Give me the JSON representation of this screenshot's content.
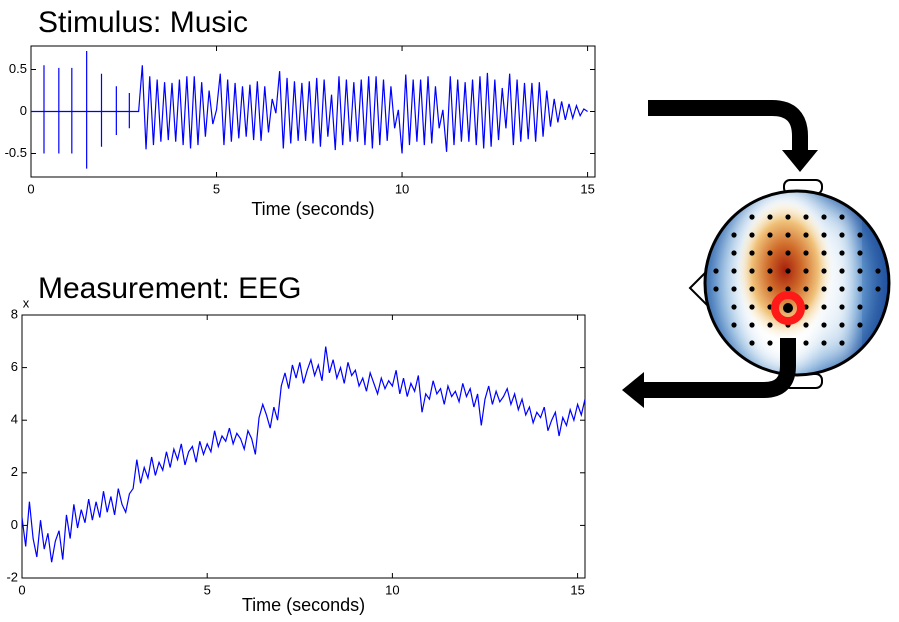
{
  "chart_data": [
    {
      "type": "line",
      "title": "Stimulus: Music",
      "xlabel": "Time (seconds)",
      "xlim": [
        0,
        15.2
      ],
      "ylim": [
        -0.78,
        0.78
      ],
      "xticks": [
        0,
        5,
        10,
        15
      ],
      "yticks": [
        -0.5,
        0,
        0.5
      ],
      "series": [
        {
          "color": "#0000ff",
          "x": [
            0,
            0.35,
            0.35,
            0.35,
            0.35,
            0.75,
            0.75,
            0.75,
            0.75,
            1.1,
            1.1,
            1.1,
            1.1,
            1.5,
            1.5,
            1.5,
            1.5,
            1.9,
            1.9,
            1.9,
            1.9,
            2.3,
            2.3,
            2.3,
            2.3,
            2.65,
            2.65,
            2.65,
            2.65,
            2.9,
            3,
            3.1,
            3.2,
            3.3,
            3.4,
            3.5,
            3.6,
            3.7,
            3.8,
            3.9,
            4,
            4.1,
            4.2,
            4.3,
            4.4,
            4.5,
            4.6,
            4.7,
            4.8,
            4.9,
            5,
            5.1,
            5.2,
            5.3,
            5.4,
            5.5,
            5.6,
            5.7,
            5.8,
            5.9,
            6,
            6.1,
            6.2,
            6.3,
            6.4,
            6.5,
            6.6,
            6.7,
            6.8,
            6.9,
            7,
            7.1,
            7.2,
            7.3,
            7.4,
            7.5,
            7.6,
            7.7,
            7.8,
            7.9,
            8,
            8.1,
            8.2,
            8.3,
            8.4,
            8.5,
            8.6,
            8.7,
            8.8,
            8.9,
            9,
            9.1,
            9.2,
            9.3,
            9.4,
            9.5,
            9.6,
            9.7,
            9.8,
            9.9,
            10,
            10.1,
            10.2,
            10.3,
            10.4,
            10.5,
            10.6,
            10.7,
            10.8,
            10.9,
            11,
            11.1,
            11.2,
            11.3,
            11.4,
            11.5,
            11.6,
            11.7,
            11.8,
            11.9,
            12,
            12.1,
            12.2,
            12.3,
            12.4,
            12.5,
            12.6,
            12.7,
            12.8,
            12.9,
            13,
            13.1,
            13.2,
            13.3,
            13.4,
            13.5,
            13.6,
            13.7,
            13.8,
            13.9,
            14,
            14.1,
            14.2,
            14.3,
            14.4,
            14.5,
            14.6,
            14.7,
            14.8,
            14.9,
            15
          ],
          "values": [
            0,
            0,
            0.55,
            -0.5,
            0,
            0,
            0.52,
            -0.5,
            0,
            0,
            0.52,
            -0.5,
            0,
            0,
            0.72,
            -0.68,
            0,
            0,
            0.45,
            -0.42,
            0,
            0,
            0.3,
            -0.28,
            0,
            0,
            0.22,
            -0.2,
            0,
            0,
            0.55,
            -0.45,
            0.42,
            -0.4,
            0.38,
            -0.36,
            0.35,
            -0.34,
            0.34,
            -0.36,
            0.38,
            -0.4,
            0.42,
            -0.44,
            0.42,
            -0.4,
            0.35,
            -0.3,
            0.25,
            -0.15,
            0.02,
            0.45,
            -0.4,
            0.38,
            -0.36,
            0.34,
            -0.32,
            0.3,
            -0.3,
            0.32,
            -0.34,
            0.36,
            -0.35,
            0.3,
            -0.25,
            0.15,
            -0.02,
            0.48,
            -0.44,
            0.4,
            -0.38,
            0.36,
            -0.35,
            0.34,
            -0.35,
            0.36,
            -0.38,
            0.4,
            -0.42,
            0.38,
            -0.3,
            0.2,
            -0.46,
            0.42,
            -0.4,
            0.38,
            -0.36,
            0.35,
            -0.36,
            0.38,
            -0.4,
            0.42,
            -0.44,
            0.42,
            -0.4,
            0.38,
            -0.35,
            0.3,
            -0.2,
            0.02,
            -0.5,
            0.44,
            -0.4,
            0.38,
            -0.36,
            0.38,
            -0.4,
            0.42,
            -0.38,
            0.3,
            -0.2,
            0.02,
            -0.48,
            0.42,
            -0.4,
            0.38,
            -0.36,
            0.35,
            -0.36,
            0.38,
            -0.4,
            0.42,
            -0.44,
            0.46,
            -0.42,
            0.38,
            -0.34,
            0.28,
            -0.2,
            0.45,
            -0.4,
            0.38,
            -0.36,
            0.34,
            -0.33,
            0.34,
            -0.36,
            0.35,
            -0.3,
            0.25,
            -0.18,
            0.15,
            -0.13,
            0.12,
            -0.1,
            0.09,
            -0.08,
            0.07,
            -0.05,
            0.03,
            0
          ]
        }
      ]
    },
    {
      "type": "line",
      "title": "Measurement: EEG",
      "xlabel": "Time (seconds)",
      "y_exponent_label": "x",
      "xlim": [
        0,
        15.2
      ],
      "ylim": [
        -2,
        8
      ],
      "xticks": [
        0,
        5,
        10,
        15
      ],
      "yticks": [
        -2,
        0,
        2,
        4,
        6,
        8
      ],
      "series": [
        {
          "color": "#0000ff",
          "x": [
            0,
            0.1,
            0.2,
            0.3,
            0.4,
            0.5,
            0.6,
            0.7,
            0.8,
            0.9,
            1,
            1.1,
            1.2,
            1.3,
            1.4,
            1.5,
            1.6,
            1.7,
            1.8,
            1.9,
            2,
            2.1,
            2.2,
            2.3,
            2.4,
            2.5,
            2.6,
            2.7,
            2.8,
            2.9,
            3,
            3.1,
            3.2,
            3.3,
            3.4,
            3.5,
            3.6,
            3.7,
            3.8,
            3.9,
            4,
            4.1,
            4.2,
            4.3,
            4.4,
            4.5,
            4.6,
            4.7,
            4.8,
            4.9,
            5,
            5.1,
            5.2,
            5.3,
            5.4,
            5.5,
            5.6,
            5.7,
            5.8,
            5.9,
            6,
            6.1,
            6.2,
            6.3,
            6.4,
            6.5,
            6.6,
            6.7,
            6.8,
            6.9,
            7,
            7.1,
            7.2,
            7.3,
            7.4,
            7.5,
            7.6,
            7.7,
            7.8,
            7.9,
            8,
            8.1,
            8.2,
            8.3,
            8.4,
            8.5,
            8.6,
            8.7,
            8.8,
            8.9,
            9,
            9.1,
            9.2,
            9.3,
            9.4,
            9.5,
            9.6,
            9.7,
            9.8,
            9.9,
            10,
            10.1,
            10.2,
            10.3,
            10.4,
            10.5,
            10.6,
            10.7,
            10.8,
            10.9,
            11,
            11.1,
            11.2,
            11.3,
            11.4,
            11.5,
            11.6,
            11.7,
            11.8,
            11.9,
            12,
            12.1,
            12.2,
            12.3,
            12.4,
            12.5,
            12.6,
            12.7,
            12.8,
            12.9,
            13,
            13.1,
            13.2,
            13.3,
            13.4,
            13.5,
            13.6,
            13.7,
            13.8,
            13.9,
            14,
            14.1,
            14.2,
            14.3,
            14.4,
            14.5,
            14.6,
            14.7,
            14.8,
            14.9,
            15,
            15.1,
            15.2
          ],
          "values": [
            0.3,
            -0.8,
            0.9,
            -0.5,
            -1.2,
            0.2,
            -0.9,
            -0.3,
            -1.4,
            -0.6,
            -0.2,
            -1.3,
            0.4,
            -0.5,
            0.8,
            -0.1,
            0.6,
            0.1,
            1.0,
            0.2,
            0.9,
            0.3,
            1.3,
            0.5,
            1.1,
            0.4,
            1.4,
            0.8,
            0.5,
            1.2,
            1.4,
            2.5,
            1.6,
            2.2,
            1.8,
            2.6,
            1.9,
            2.4,
            2.1,
            2.8,
            2.2,
            2.9,
            2.5,
            3.1,
            2.3,
            2.8,
            3.0,
            2.4,
            3.2,
            2.7,
            3.1,
            2.8,
            3.6,
            3.0,
            3.4,
            3.2,
            3.7,
            3.1,
            3.5,
            3.3,
            2.9,
            3.6,
            3.3,
            2.7,
            4.1,
            4.6,
            4.2,
            3.7,
            4.5,
            4.0,
            5.3,
            5.8,
            5.2,
            6.1,
            5.6,
            6.2,
            5.4,
            5.9,
            6.3,
            5.7,
            6.1,
            5.5,
            6.8,
            5.8,
            6.3,
            5.6,
            6.0,
            5.4,
            6.2,
            5.7,
            5.9,
            5.3,
            5.6,
            5.1,
            5.8,
            5.4,
            5.0,
            5.6,
            5.2,
            5.5,
            5.3,
            5.9,
            5.0,
            5.6,
            4.9,
            5.4,
            5.1,
            5.7,
            4.3,
            5.0,
            4.8,
            5.5,
            5.0,
            5.2,
            4.6,
            5.3,
            4.9,
            5.1,
            4.7,
            5.4,
            4.9,
            5.2,
            4.5,
            5.0,
            3.8,
            4.8,
            5.3,
            4.6,
            5.1,
            4.7,
            4.9,
            5.2,
            4.6,
            5.0,
            4.4,
            4.8,
            4.2,
            4.5,
            3.9,
            4.3,
            4.1,
            4.5,
            3.6,
            4.0,
            4.3,
            3.4,
            4.1,
            3.8,
            4.4,
            4.0,
            4.6,
            4.2,
            4.8
          ]
        }
      ]
    }
  ]
}
